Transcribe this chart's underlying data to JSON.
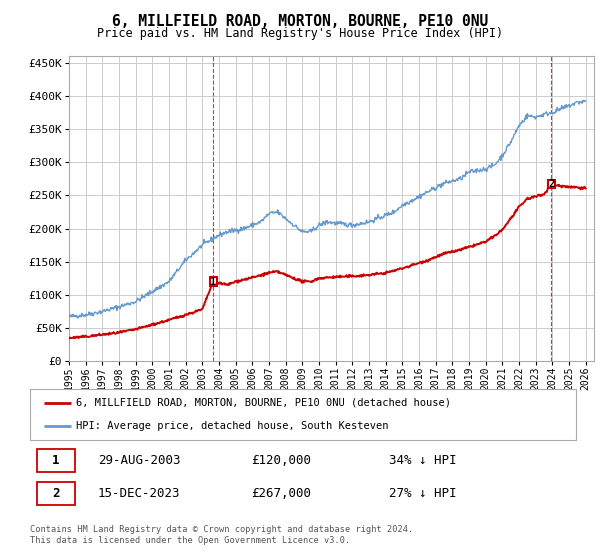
{
  "title": "6, MILLFIELD ROAD, MORTON, BOURNE, PE10 0NU",
  "subtitle": "Price paid vs. HM Land Registry's House Price Index (HPI)",
  "ylabel_ticks": [
    "£0",
    "£50K",
    "£100K",
    "£150K",
    "£200K",
    "£250K",
    "£300K",
    "£350K",
    "£400K",
    "£450K"
  ],
  "ytick_values": [
    0,
    50000,
    100000,
    150000,
    200000,
    250000,
    300000,
    350000,
    400000,
    450000
  ],
  "ylim": [
    0,
    460000
  ],
  "xlim_start": 1995.0,
  "xlim_end": 2026.5,
  "background_color": "#ffffff",
  "plot_bg_color": "#ffffff",
  "grid_color": "#cccccc",
  "hpi_color": "#6699cc",
  "price_color": "#cc0000",
  "marker1_label": "1",
  "marker1_x": 2003.65,
  "marker1_y": 120000,
  "marker1_date": "29-AUG-2003",
  "marker1_price": "£120,000",
  "marker1_hpi": "34% ↓ HPI",
  "marker2_label": "2",
  "marker2_x": 2023.95,
  "marker2_y": 267000,
  "marker2_date": "15-DEC-2023",
  "marker2_price": "£267,000",
  "marker2_hpi": "27% ↓ HPI",
  "legend_line1": "6, MILLFIELD ROAD, MORTON, BOURNE, PE10 0NU (detached house)",
  "legend_line2": "HPI: Average price, detached house, South Kesteven",
  "footnote": "Contains HM Land Registry data © Crown copyright and database right 2024.\nThis data is licensed under the Open Government Licence v3.0.",
  "xtick_years": [
    1995,
    1996,
    1997,
    1998,
    1999,
    2000,
    2001,
    2002,
    2003,
    2004,
    2005,
    2006,
    2007,
    2008,
    2009,
    2010,
    2011,
    2012,
    2013,
    2014,
    2015,
    2016,
    2017,
    2018,
    2019,
    2020,
    2021,
    2022,
    2023,
    2024,
    2025,
    2026
  ],
  "hpi_anchors_x": [
    1995.0,
    1996.0,
    1997.0,
    1998.0,
    1999.0,
    2000.0,
    2001.0,
    2002.0,
    2003.0,
    2004.0,
    2004.5,
    2005.5,
    2006.5,
    2007.0,
    2007.5,
    2008.0,
    2008.5,
    2009.0,
    2009.5,
    2010.0,
    2010.5,
    2011.0,
    2012.0,
    2013.0,
    2013.5,
    2014.5,
    2015.0,
    2016.0,
    2016.5,
    2017.5,
    2018.5,
    2019.0,
    2020.0,
    2020.5,
    2021.0,
    2021.5,
    2022.0,
    2022.5,
    2023.0,
    2023.5,
    2024.0,
    2024.5,
    2025.0,
    2025.5,
    2026.0
  ],
  "hpi_anchors_y": [
    67000,
    70000,
    75000,
    82000,
    90000,
    105000,
    120000,
    152000,
    175000,
    190000,
    195000,
    200000,
    210000,
    222000,
    225000,
    215000,
    205000,
    195000,
    195000,
    205000,
    210000,
    208000,
    205000,
    210000,
    215000,
    225000,
    235000,
    248000,
    255000,
    268000,
    275000,
    285000,
    290000,
    295000,
    310000,
    330000,
    355000,
    370000,
    368000,
    372000,
    375000,
    380000,
    385000,
    390000,
    392000
  ],
  "price_anchors_x": [
    1995.0,
    1996.0,
    1997.0,
    1998.0,
    1999.0,
    2000.0,
    2001.0,
    2002.0,
    2003.0,
    2003.65,
    2004.0,
    2004.5,
    2005.0,
    2006.0,
    2007.0,
    2007.5,
    2008.0,
    2008.5,
    2009.0,
    2009.5,
    2010.0,
    2011.0,
    2012.0,
    2013.0,
    2014.0,
    2015.0,
    2016.0,
    2016.5,
    2017.5,
    2018.5,
    2019.0,
    2020.0,
    2020.5,
    2021.0,
    2021.5,
    2022.0,
    2022.5,
    2023.0,
    2023.5,
    2023.95,
    2024.0,
    2024.5,
    2025.0,
    2025.5,
    2026.0
  ],
  "price_anchors_y": [
    35000,
    37000,
    40000,
    43000,
    48000,
    55000,
    62000,
    70000,
    78000,
    120000,
    118000,
    115000,
    120000,
    126000,
    133000,
    135000,
    130000,
    125000,
    120000,
    120000,
    125000,
    127000,
    128000,
    130000,
    133000,
    140000,
    148000,
    152000,
    162000,
    168000,
    172000,
    180000,
    188000,
    198000,
    215000,
    232000,
    245000,
    248000,
    252000,
    267000,
    266000,
    264000,
    263000,
    262000,
    261000
  ]
}
